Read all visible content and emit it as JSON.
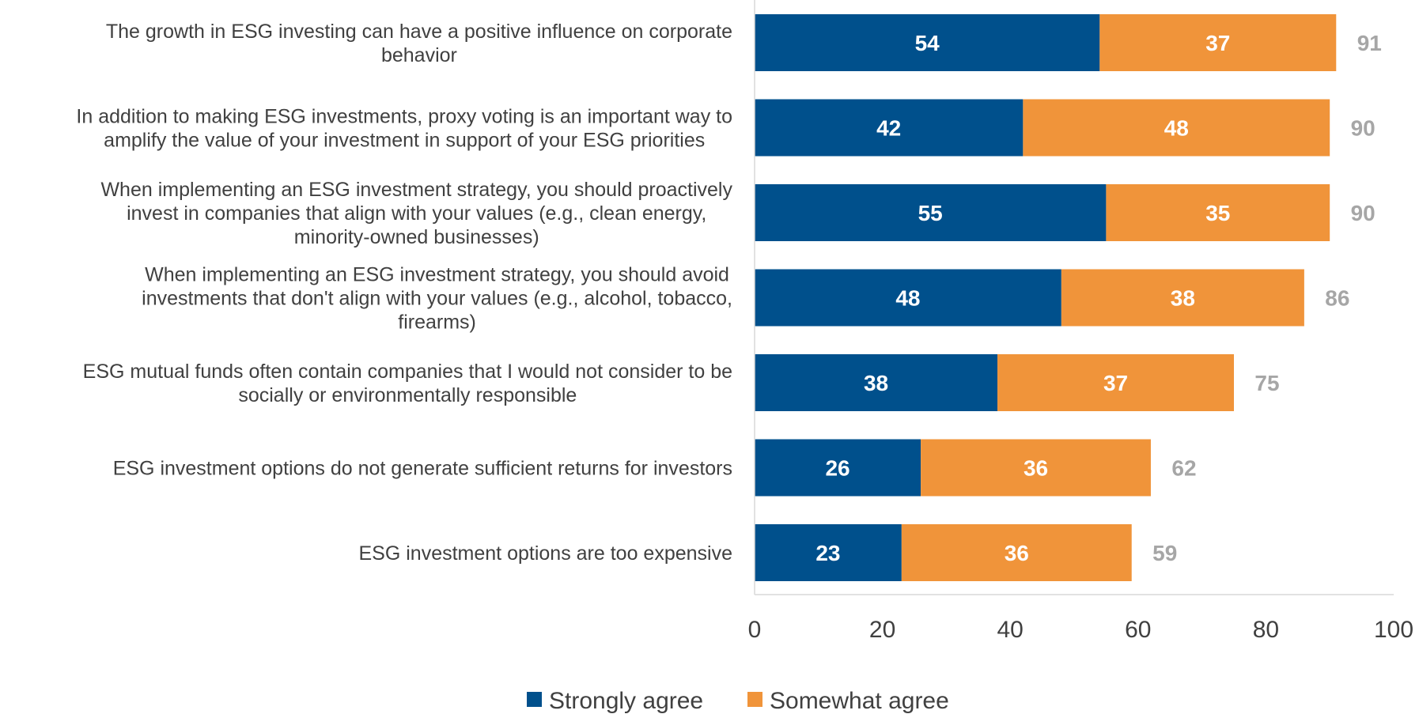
{
  "chart_data": {
    "type": "bar",
    "orientation": "horizontal",
    "stacked": true,
    "categories": [
      [
        "The growth in ESG investing can have a positive influence on corporate",
        "behavior"
      ],
      [
        "In addition to making ESG investments, proxy voting is an important way to",
        "amplify the value of your investment in support of your ESG priorities"
      ],
      [
        "When implementing an ESG investment strategy, you should proactively",
        "invest in companies that align with your values (e.g., clean energy,",
        "minority-owned businesses)"
      ],
      [
        "When implementing an ESG investment strategy, you should avoid",
        "investments that don't align with your values (e.g., alcohol, tobacco,",
        "firearms)"
      ],
      [
        "ESG mutual funds often contain companies that I would not consider to be",
        "socially or environmentally responsible"
      ],
      [
        "ESG investment options do not generate sufficient returns for investors"
      ],
      [
        "ESG investment options are too expensive"
      ]
    ],
    "series": [
      {
        "name": "Strongly agree",
        "color": "#00508c",
        "values": [
          54,
          42,
          55,
          48,
          38,
          26,
          23
        ]
      },
      {
        "name": "Somewhat agree",
        "color": "#f0943a",
        "values": [
          37,
          48,
          35,
          38,
          37,
          36,
          36
        ]
      }
    ],
    "totals": [
      91,
      90,
      90,
      86,
      75,
      62,
      59
    ],
    "total_color": "#a6a6a6",
    "xlim": [
      0,
      100
    ],
    "xticks": [
      "0",
      "20",
      "40",
      "60",
      "80",
      "100"
    ],
    "grid": false,
    "legend_position": "bottom"
  }
}
